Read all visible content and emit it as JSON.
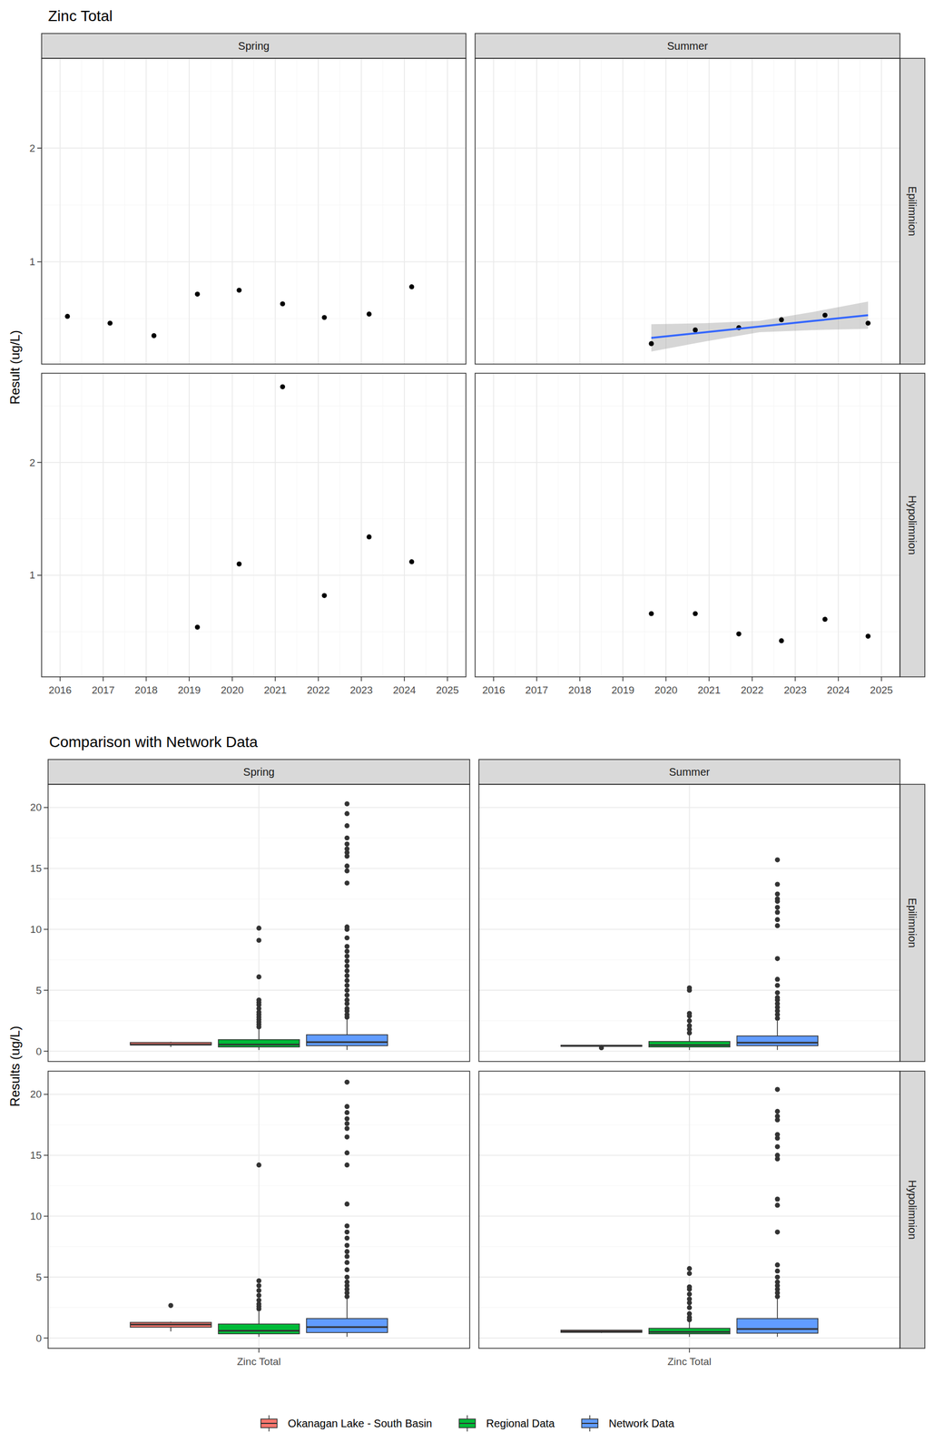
{
  "chart_data": [
    {
      "type": "scatter",
      "title": "Zinc Total",
      "y_label": "Result (ug/L)",
      "facet_columns": [
        "Spring",
        "Summer"
      ],
      "facet_rows": [
        "Epilimnion",
        "Hypolimnion"
      ],
      "xlim": [
        2015.57,
        2025.43
      ],
      "xticks": [
        2016,
        2017,
        2018,
        2019,
        2020,
        2021,
        2022,
        2023,
        2024,
        2025
      ],
      "ylim": [
        0.1,
        2.79
      ],
      "yticks": [
        1,
        2
      ],
      "grid": true,
      "marker": "circle",
      "panels": [
        [
          {
            "x": [
              2016.17,
              2017.16,
              2018.18,
              2019.19,
              2020.16,
              2021.17,
              2022.14,
              2023.18,
              2024.17
            ],
            "values": [
              0.52,
              0.46,
              0.35,
              0.715,
              0.75,
              0.63,
              0.51,
              0.54,
              0.78
            ]
          },
          {
            "x": [
              2019.66,
              2020.68,
              2021.69,
              2022.68,
              2023.69,
              2024.69
            ],
            "values": [
              0.28,
              0.4,
              0.42,
              0.49,
              0.53,
              0.46
            ],
            "trend": {
              "type": "line",
              "color": "#3366ff",
              "x": [
                2019.66,
                2020.92,
                2022.17,
                2023.43,
                2024.69
              ],
              "values": [
                0.33,
                0.38,
                0.43,
                0.48,
                0.53
              ],
              "lower": [
                0.21,
                0.3,
                0.38,
                0.4,
                0.41
              ],
              "upper": [
                0.45,
                0.46,
                0.48,
                0.56,
                0.65
              ]
            }
          }
        ],
        [
          {
            "x": [
              2019.19,
              2020.16,
              2021.17,
              2022.14,
              2023.18,
              2024.17
            ],
            "values": [
              0.54,
              1.1,
              2.67,
              0.82,
              1.34,
              1.12
            ]
          },
          {
            "x": [
              2019.66,
              2020.68,
              2021.69,
              2022.68,
              2023.69,
              2024.69
            ],
            "values": [
              0.66,
              0.66,
              0.48,
              0.42,
              0.61,
              0.46
            ]
          }
        ]
      ]
    },
    {
      "type": "box",
      "title": "Comparison with Network Data",
      "y_label": "Results (ug/L)",
      "categories": [
        "Zinc Total"
      ],
      "facet_columns": [
        "Spring",
        "Summer"
      ],
      "facet_rows": [
        "Epilimnion",
        "Hypolimnion"
      ],
      "ylim": [
        -0.84,
        21.9
      ],
      "yticks": [
        0,
        5,
        10,
        15,
        20
      ],
      "grid": true,
      "legend": "bottom",
      "series": [
        {
          "name": "Okanagan Lake - South Basin",
          "color": "#f8766d"
        },
        {
          "name": "Regional Data",
          "color": "#00ba38"
        },
        {
          "name": "Network Data",
          "color": "#619cff"
        }
      ],
      "panels": [
        [
          {
            "boxes": [
              {
                "min": 0.35,
                "q1": 0.51,
                "median": 0.54,
                "q3": 0.715,
                "max": 0.78,
                "outliers": []
              },
              {
                "min": 0.1,
                "q1": 0.35,
                "median": 0.55,
                "q3": 0.95,
                "max": 1.85,
                "outliers": [
                  2.0,
                  2.2,
                  2.4,
                  2.6,
                  2.8,
                  3.0,
                  3.2,
                  3.5,
                  3.8,
                  4.0,
                  4.2,
                  6.1,
                  9.1,
                  10.1
                ]
              },
              {
                "min": 0.1,
                "q1": 0.45,
                "median": 0.75,
                "q3": 1.35,
                "max": 2.7,
                "outliers": [
                  2.8,
                  3.0,
                  3.3,
                  3.5,
                  3.9,
                  4.2,
                  4.6,
                  5.0,
                  5.4,
                  5.8,
                  6.2,
                  6.6,
                  7.0,
                  7.4,
                  7.8,
                  8.2,
                  8.6,
                  9.3,
                  10.0,
                  10.2,
                  13.8,
                  14.8,
                  15.2,
                  16.0,
                  16.3,
                  16.6,
                  17.0,
                  17.5,
                  18.5,
                  19.5,
                  20.3
                ]
              }
            ]
          },
          {
            "boxes": [
              {
                "min": 0.4,
                "q1": 0.405,
                "median": 0.44,
                "q3": 0.4825,
                "max": 0.53,
                "outliers": [
                  0.28
                ]
              },
              {
                "min": 0.1,
                "q1": 0.35,
                "median": 0.5,
                "q3": 0.8,
                "max": 1.4,
                "outliers": [
                  1.5,
                  1.8,
                  2.1,
                  2.5,
                  2.9,
                  3.1,
                  5.0,
                  5.2
                ]
              },
              {
                "min": 0.1,
                "q1": 0.45,
                "median": 0.7,
                "q3": 1.25,
                "max": 2.5,
                "outliers": [
                  2.7,
                  3.0,
                  3.3,
                  3.6,
                  3.9,
                  4.2,
                  4.4,
                  4.8,
                  5.4,
                  5.9,
                  7.6,
                  10.3,
                  10.8,
                  11.4,
                  11.8,
                  12.3,
                  12.5,
                  12.9,
                  13.7,
                  15.7
                ]
              }
            ]
          }
        ],
        [
          {
            "boxes": [
              {
                "min": 0.54,
                "q1": 0.89,
                "median": 1.11,
                "q3": 1.285,
                "max": 1.34,
                "outliers": [
                  2.67
                ]
              },
              {
                "min": 0.1,
                "q1": 0.35,
                "median": 0.6,
                "q3": 1.15,
                "max": 2.2,
                "outliers": [
                  2.4,
                  2.6,
                  2.8,
                  3.1,
                  3.5,
                  3.9,
                  4.3,
                  4.7,
                  14.2
                ]
              },
              {
                "min": 0.1,
                "q1": 0.45,
                "median": 0.9,
                "q3": 1.6,
                "max": 3.2,
                "outliers": [
                  3.4,
                  3.7,
                  4.0,
                  4.3,
                  4.6,
                  5.0,
                  5.6,
                  6.2,
                  6.7,
                  7.1,
                  7.6,
                  8.2,
                  8.7,
                  9.2,
                  11.0,
                  14.2,
                  15.2,
                  16.5,
                  17.2,
                  17.6,
                  18.0,
                  18.5,
                  19.0,
                  21.0
                ]
              }
            ]
          },
          {
            "boxes": [
              {
                "min": 0.42,
                "q1": 0.465,
                "median": 0.545,
                "q3": 0.6475,
                "max": 0.66,
                "outliers": []
              },
              {
                "min": 0.1,
                "q1": 0.35,
                "median": 0.5,
                "q3": 0.8,
                "max": 1.4,
                "outliers": [
                  1.5,
                  1.7,
                  2.0,
                  2.5,
                  2.9,
                  3.2,
                  3.6,
                  4.0,
                  4.2,
                  5.3,
                  5.7
                ]
              },
              {
                "min": 0.1,
                "q1": 0.4,
                "median": 0.75,
                "q3": 1.6,
                "max": 3.2,
                "outliers": [
                  3.4,
                  3.7,
                  4.0,
                  4.3,
                  4.6,
                  5.0,
                  5.5,
                  6.0,
                  8.7,
                  10.9,
                  11.4,
                  14.7,
                  15.0,
                  15.7,
                  16.4,
                  16.7,
                  17.9,
                  18.2,
                  18.6,
                  20.4
                ]
              }
            ]
          }
        ]
      ]
    }
  ]
}
